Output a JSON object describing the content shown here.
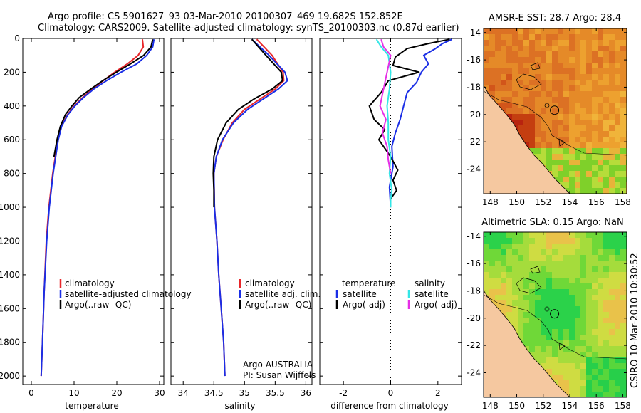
{
  "header": {
    "line1": "Argo profile: CS 5901627_93 03-Mar-2010 20100307_469 19.682S 152.852E",
    "line2": "Climatology: CARS2009. Satellite-adjusted climatology: synTS_20100303.nc (0.87d earlier)"
  },
  "colors": {
    "red": "#e8262a",
    "blue": "#1a2ee6",
    "black": "#000000",
    "cyan": "#33e6e6",
    "magenta": "#e62ee6",
    "land": "#f5c8a0"
  },
  "chart_data": [
    {
      "type": "line",
      "id": "temperature",
      "xlabel": "temperature",
      "ylabel": "",
      "xlim": [
        -2,
        31
      ],
      "ylim": [
        2050,
        0
      ],
      "xticks": [
        0,
        10,
        20,
        30
      ],
      "xtick_labels": [
        "0",
        "10",
        "20",
        "30"
      ],
      "yticks": [
        0,
        200,
        400,
        600,
        800,
        1000,
        1200,
        1400,
        1600,
        1800,
        2000
      ],
      "ytick_labels": [
        "0",
        "200",
        "400",
        "600",
        "800",
        "1000",
        "1200",
        "1400",
        "1600",
        "1800",
        "2000"
      ],
      "series": [
        {
          "name": "climatology",
          "color": "red",
          "x": [
            26.0,
            26.2,
            25.0,
            22.5,
            19.5,
            16.8,
            14.3,
            12.0,
            10.0,
            8.5,
            7.0,
            6.2,
            5.6,
            5.0,
            4.1,
            3.5,
            3.0,
            2.6,
            2.3
          ],
          "y": [
            5,
            50,
            100,
            150,
            200,
            250,
            300,
            350,
            400,
            450,
            520,
            600,
            700,
            800,
            1000,
            1200,
            1500,
            1800,
            2000
          ]
        },
        {
          "name": "satellite-adjusted climatology",
          "color": "blue",
          "x": [
            28.7,
            28.4,
            27.0,
            24.7,
            21.0,
            17.6,
            14.6,
            12.2,
            10.2,
            8.6,
            7.1,
            6.3,
            5.7,
            5.1,
            4.2,
            3.6,
            3.0,
            2.6,
            2.3
          ],
          "y": [
            5,
            50,
            100,
            150,
            200,
            250,
            300,
            350,
            400,
            450,
            520,
            600,
            700,
            800,
            1000,
            1200,
            1500,
            1800,
            2000
          ]
        },
        {
          "name": "Argo(..raw -QC)",
          "color": "black",
          "x": [
            28.4,
            28.0,
            26.3,
            23.2,
            19.9,
            16.7,
            13.9,
            11.2,
            9.5,
            8.0,
            6.8,
            6.0,
            5.3
          ],
          "y": [
            5,
            50,
            100,
            150,
            200,
            250,
            300,
            350,
            400,
            450,
            520,
            600,
            700
          ]
        }
      ],
      "legend_location": "lower-right",
      "legend": [
        "climatology",
        "satellite-adjusted climatology",
        "Argo(..raw -QC)"
      ]
    },
    {
      "type": "line",
      "id": "salinity",
      "xlabel": "salinity",
      "xlim": [
        33.8,
        36.1
      ],
      "ylim": [
        2050,
        0
      ],
      "xticks": [
        34,
        34.5,
        35,
        35.5,
        36
      ],
      "xtick_labels": [
        "34",
        "34.5",
        "35",
        "35.5",
        "36"
      ],
      "series": [
        {
          "name": "climatology",
          "color": "red",
          "x": [
            35.2,
            35.45,
            35.63,
            35.64,
            35.5,
            35.25,
            35.0,
            34.8,
            34.65,
            34.54,
            34.5,
            34.51,
            34.55,
            34.58,
            34.62,
            34.66,
            34.68
          ],
          "y": [
            5,
            100,
            200,
            250,
            300,
            360,
            420,
            500,
            600,
            700,
            800,
            1000,
            1200,
            1400,
            1600,
            1800,
            2000
          ]
        },
        {
          "name": "satellite adj. clim.",
          "color": "blue",
          "x": [
            35.12,
            35.4,
            35.66,
            35.7,
            35.55,
            35.3,
            35.05,
            34.82,
            34.64,
            34.54,
            34.5,
            34.51,
            34.55,
            34.58,
            34.62,
            34.66,
            34.68
          ],
          "y": [
            5,
            100,
            200,
            250,
            300,
            360,
            420,
            500,
            600,
            700,
            800,
            1000,
            1200,
            1400,
            1600,
            1800,
            2000
          ]
        },
        {
          "name": "Argo(..raw -QC)",
          "color": "black",
          "x": [
            35.12,
            35.35,
            35.6,
            35.62,
            35.45,
            35.15,
            34.9,
            34.7,
            34.56,
            34.5,
            34.49,
            34.5,
            34.5
          ],
          "y": [
            5,
            100,
            200,
            250,
            300,
            360,
            420,
            500,
            600,
            700,
            800,
            900,
            1000
          ]
        }
      ],
      "legend": [
        "climatology",
        "satellite adj. clim.",
        "Argo(..raw -QC)"
      ],
      "annotation": [
        "Argo AUSTRALIA",
        "PI: Susan Wijffels"
      ]
    },
    {
      "type": "line",
      "id": "difference",
      "xlabel": "difference from climatology",
      "xlim": [
        -3,
        3
      ],
      "ylim": [
        2050,
        0
      ],
      "xticks": [
        -2,
        0,
        2
      ],
      "xtick_labels": [
        "-2",
        "0",
        "2"
      ],
      "zero_line": 0,
      "series": [
        {
          "name": "satellite (temperature)",
          "color": "blue",
          "x": [
            2.6,
            2.2,
            1.9,
            1.4,
            1.6,
            1.3,
            1.1,
            0.7,
            0.55,
            0.4,
            0.2,
            0.05,
            0.1,
            -0.05,
            0.0
          ],
          "y": [
            5,
            30,
            60,
            100,
            150,
            200,
            260,
            320,
            400,
            480,
            560,
            640,
            760,
            880,
            1000
          ]
        },
        {
          "name": "Argo(-adj) (temperature)",
          "color": "black",
          "x": [
            2.5,
            1.6,
            0.7,
            0.2,
            0.1,
            1.2,
            -0.1,
            -0.4,
            -0.9,
            -0.7,
            -0.25,
            -0.5,
            0.0,
            0.3,
            0.1,
            0.25,
            0.0,
            0.0
          ],
          "y": [
            5,
            30,
            60,
            110,
            160,
            200,
            250,
            320,
            400,
            480,
            540,
            600,
            700,
            780,
            840,
            900,
            950,
            1000
          ]
        },
        {
          "name": "satellite (salinity)",
          "color": "cyan",
          "x": [
            -0.6,
            -0.4,
            -0.1,
            0.0,
            -0.05,
            -0.15,
            -0.1,
            -0.1,
            0.0,
            -0.05,
            0.05,
            0.0,
            0.0
          ],
          "y": [
            5,
            50,
            100,
            200,
            300,
            400,
            500,
            600,
            700,
            800,
            900,
            950,
            1000
          ]
        },
        {
          "name": "Argo(-adj) (salinity)",
          "color": "magenta",
          "x": [
            -0.4,
            -0.3,
            0.0,
            -0.15,
            -0.3,
            -0.45,
            -0.2,
            -0.35,
            -0.15,
            -0.1,
            0.0
          ],
          "y": [
            5,
            50,
            100,
            200,
            300,
            400,
            480,
            560,
            640,
            720,
            800
          ]
        }
      ],
      "legend_headers": [
        "temperature",
        "salinity"
      ],
      "legend": [
        "satellite",
        "Argo(-adj)",
        "satellite",
        "Argo(-adj)"
      ]
    },
    {
      "type": "heatmap",
      "id": "sst-map",
      "title": "AMSR-E SST: 28.7 Argo: 28.4",
      "xlim": [
        147.5,
        158.3
      ],
      "ylim": [
        -25.8,
        -13.7
      ],
      "xticks": [
        148,
        150,
        152,
        154,
        156,
        158
      ],
      "xtick_labels": [
        "148",
        "150",
        "152",
        "154",
        "156",
        "158"
      ],
      "yticks": [
        -14,
        -16,
        -18,
        -20,
        -22,
        -24
      ],
      "ytick_labels": [
        "-14",
        "-16",
        "-18",
        "-20",
        "-22",
        "-24"
      ],
      "argo_position": [
        152.852,
        -19.682
      ]
    },
    {
      "type": "heatmap",
      "id": "sla-map",
      "title": "Altimetric SLA: 0.15 Argo: NaN",
      "xlim": [
        147.5,
        158.3
      ],
      "ylim": [
        -25.8,
        -13.7
      ],
      "xticks": [
        148,
        150,
        152,
        154,
        156,
        158
      ],
      "xtick_labels": [
        "148",
        "150",
        "152",
        "154",
        "156",
        "158"
      ],
      "yticks": [
        -14,
        -16,
        -18,
        -20,
        -22,
        -24
      ],
      "ytick_labels": [
        "-14",
        "-16",
        "-18",
        "-20",
        "-22",
        "-24"
      ],
      "argo_position": [
        152.852,
        -19.682
      ]
    }
  ],
  "footer": {
    "stamp": "CSIRO 10-Mar-2010 10:30:52"
  }
}
